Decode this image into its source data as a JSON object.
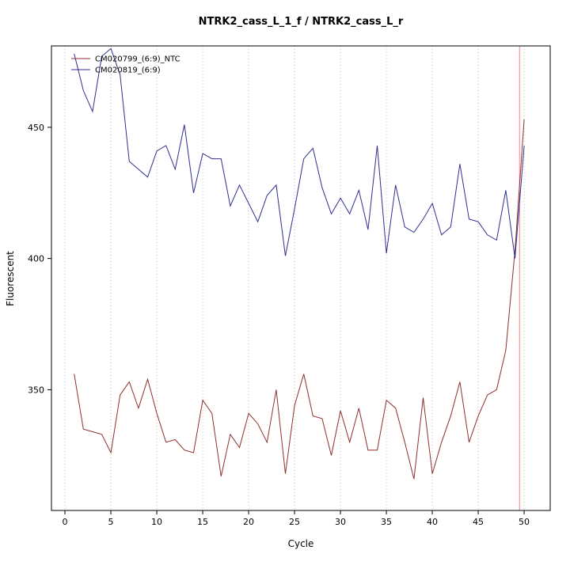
{
  "title": "NTRK2_cass_L_1_f / NTRK2_cass_L_r",
  "axes": {
    "xlabel": "Cycle",
    "ylabel": "Fluorescent"
  },
  "legend": [
    {
      "label": "CM020799_(6:9)_NTC",
      "color": "#8f2f2f"
    },
    {
      "label": "CM020819_(6:9)",
      "color": "#2f2f8f"
    }
  ],
  "colors": {
    "grid": "#b8b8b8",
    "vline": "#ff8080",
    "frame": "#000000",
    "background": "#ffffff"
  },
  "chart_data": {
    "type": "line",
    "title": "NTRK2_cass_L_1_f / NTRK2_cass_L_r",
    "xlabel": "Cycle",
    "ylabel": "Fluorescent",
    "x": [
      1,
      2,
      3,
      4,
      5,
      6,
      7,
      8,
      9,
      10,
      11,
      12,
      13,
      14,
      15,
      16,
      17,
      18,
      19,
      20,
      21,
      22,
      23,
      24,
      25,
      26,
      27,
      28,
      29,
      30,
      31,
      32,
      33,
      34,
      35,
      36,
      37,
      38,
      39,
      40,
      41,
      42,
      43,
      44,
      45,
      46,
      47,
      48,
      49,
      50
    ],
    "series": [
      {
        "name": "CM020799_(6:9)_NTC",
        "color": "#8f2f2f",
        "values": [
          356,
          335,
          334,
          333,
          326,
          348,
          353,
          343,
          354,
          341,
          330,
          331,
          327,
          326,
          346,
          341,
          317,
          333,
          328,
          341,
          337,
          330,
          350,
          318,
          344,
          356,
          340,
          339,
          325,
          342,
          330,
          343,
          327,
          327,
          346,
          343,
          330,
          316,
          347,
          318,
          330,
          340,
          353,
          330,
          340,
          348,
          350,
          365,
          403,
          453
        ]
      },
      {
        "name": "CM020819_(6:9)",
        "color": "#2f2f8f",
        "values": [
          478,
          464,
          456,
          477,
          480,
          470,
          437,
          434,
          431,
          441,
          443,
          434,
          451,
          425,
          440,
          438,
          438,
          420,
          428,
          421,
          414,
          424,
          428,
          401,
          419,
          438,
          442,
          427,
          417,
          423,
          417,
          426,
          411,
          443,
          402,
          428,
          412,
          410,
          415,
          421,
          409,
          412,
          436,
          415,
          414,
          409,
          407,
          426,
          400,
          443
        ]
      }
    ],
    "xticks": [
      0,
      5,
      10,
      15,
      20,
      25,
      30,
      35,
      40,
      45,
      50
    ],
    "yticks": [
      350,
      400,
      450
    ],
    "xlim": [
      -1.47,
      52.84
    ],
    "ylim": [
      304,
      481
    ],
    "grid_x": [
      0,
      5,
      10,
      15,
      20,
      25,
      30,
      35,
      40,
      45,
      50
    ],
    "grid_style": "vertical-dotted",
    "threshold_vline_x": 49.5,
    "legend_position": "top-left"
  }
}
